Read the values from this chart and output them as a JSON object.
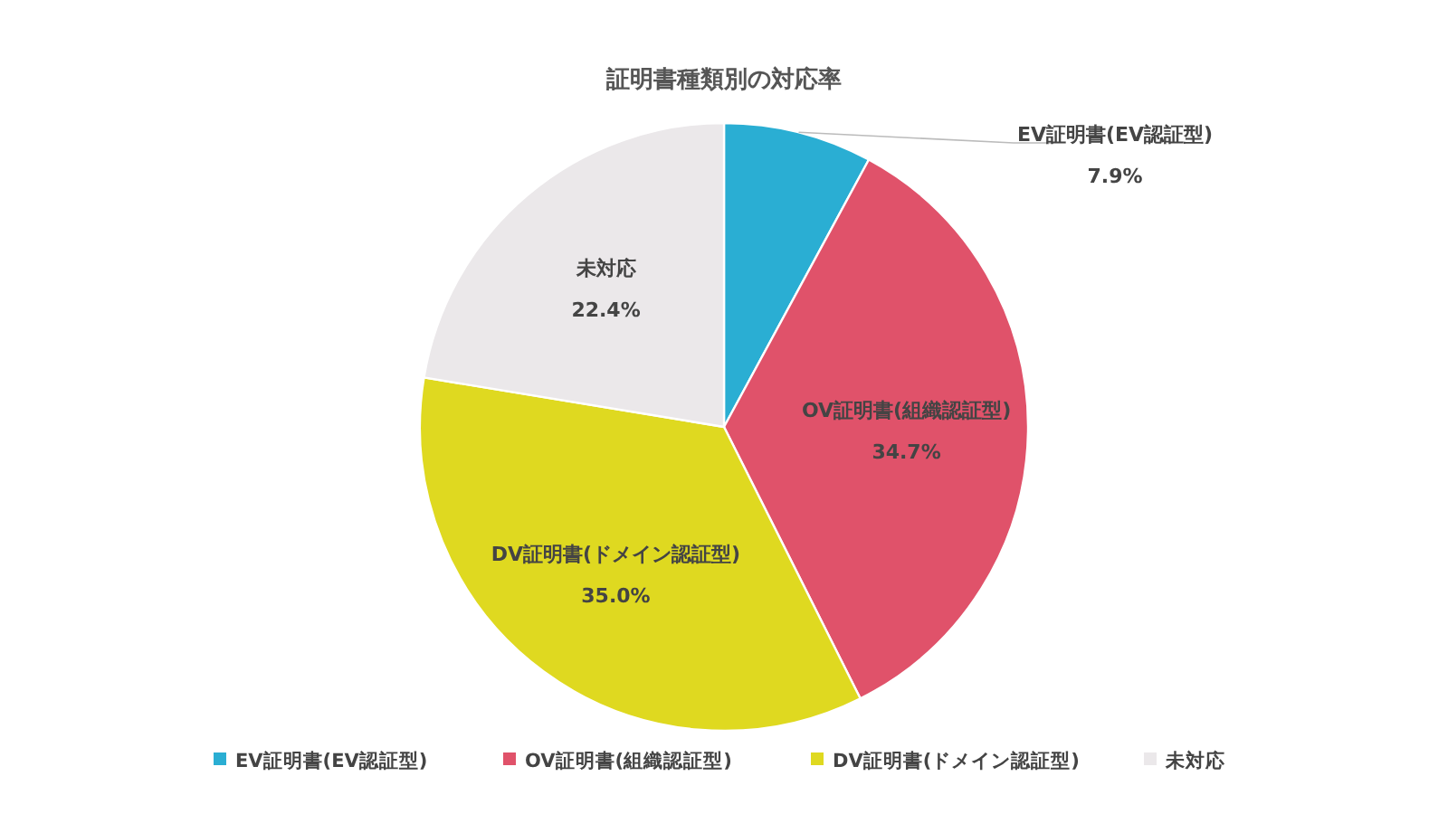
{
  "chart_data": {
    "type": "pie",
    "title": "証明書種類別の対応率",
    "categories": [
      "EV証明書(EV認証型)",
      "OV証明書(組織認証型)",
      "DV証明書(ドメイン認証型)",
      "未対応"
    ],
    "values": [
      7.9,
      34.7,
      35.0,
      22.4
    ],
    "colors": [
      "#2aaed3",
      "#e0526a",
      "#dfd920",
      "#ebe8ea"
    ],
    "value_labels": [
      "7.9%",
      "34.7%",
      "35.0%",
      "22.4%"
    ],
    "legend": "bottom"
  }
}
